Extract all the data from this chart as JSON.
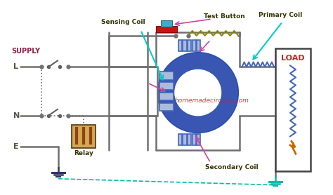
{
  "bg_color": "#ffffff",
  "supply_label": "SUPPLY",
  "L_label": "L",
  "N_label": "N",
  "E_label": "E",
  "load_label": "LOAD",
  "sensing_coil_label": "Sensing Coil",
  "test_button_label": "Test Button",
  "primary_coil_label": "Primary Coil",
  "secondary_coil_label": "Secondary Coil",
  "relay_label": "Relay",
  "watermark": "homemadecircuits.com",
  "wire_color": "#707070",
  "toroid_color": "#2244aa",
  "coil_color": "#4466bb",
  "ground_color": "#00bbaa",
  "relay_color": "#8B4513",
  "switch_color": "#606060",
  "load_box_color": "#333333",
  "test_btn_red": "#cc1111",
  "test_btn_teal": "#44aacc",
  "label_color": "#333300",
  "supply_color": "#882244",
  "arrow_color": "#dd44cc",
  "bolt_color": "#cc6600",
  "cyan_arrow": "#00cccc",
  "sensing_arrow": "#cc44aa"
}
